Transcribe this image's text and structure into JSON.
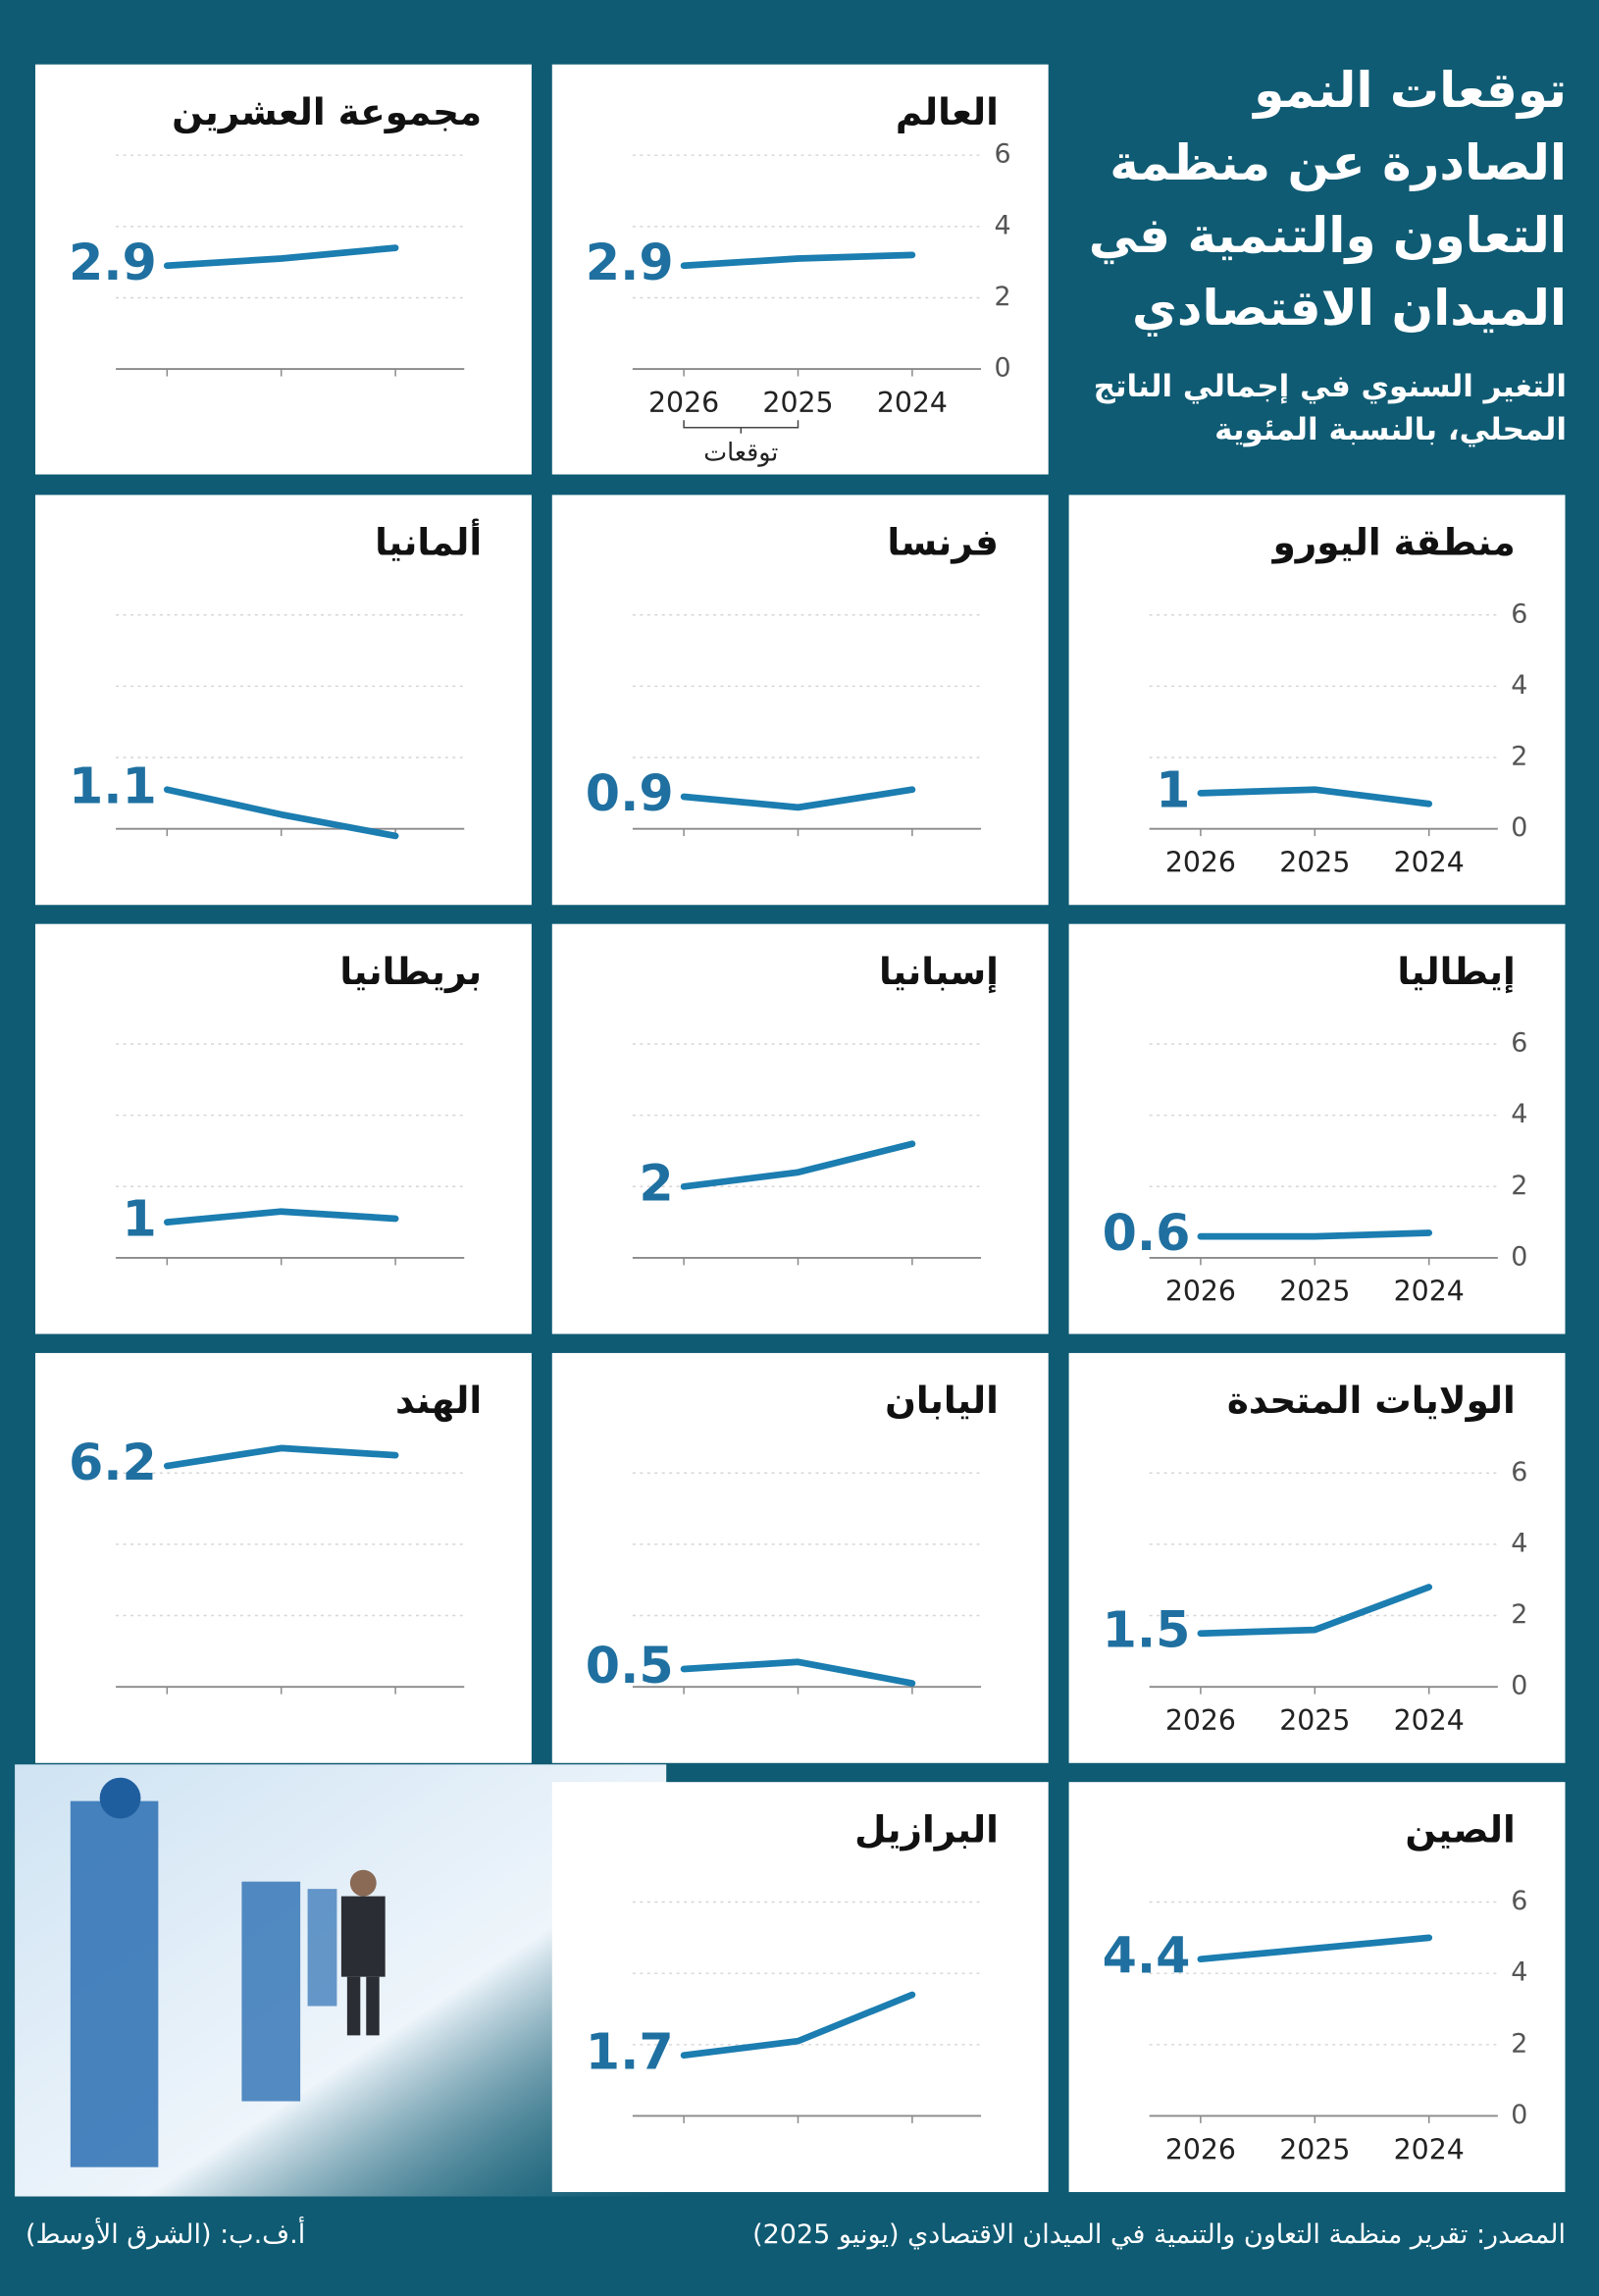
{
  "header": {
    "title": "توقعات النمو الصادرة عن منظمة التعاون والتنمية في الميدان الاقتصادي",
    "subtitle": "التغير السنوي في إجمالي الناتج المحلي، بالنسبة المئوية"
  },
  "chart_data": [
    {
      "type": "line",
      "title": "العالم",
      "categories": [
        "2024",
        "2025",
        "2026"
      ],
      "values": [
        3.2,
        3.1,
        2.9
      ],
      "color": "#1b7db0",
      "ylim": [
        0,
        6
      ],
      "yticks": [
        0,
        2,
        4,
        6
      ],
      "grid": true,
      "tick_labels": true,
      "annotation": "توقعات"
    },
    {
      "type": "line",
      "title": "مجموعة العشرين",
      "categories": [
        "2024",
        "2025",
        "2026"
      ],
      "values": [
        3.4,
        3.1,
        2.9
      ],
      "color": "#1b7db0",
      "ylim": [
        0,
        6
      ],
      "yticks": [
        0,
        2,
        4,
        6
      ],
      "grid": true,
      "tick_labels": false
    },
    {
      "type": "line",
      "title": "منطقة اليورو",
      "categories": [
        "2024",
        "2025",
        "2026"
      ],
      "values": [
        0.7,
        1.1,
        1
      ],
      "color": "#1b7db0",
      "ylim": [
        0,
        6
      ],
      "yticks": [
        0,
        2,
        4,
        6
      ],
      "grid": true,
      "tick_labels": true
    },
    {
      "type": "line",
      "title": "فرنسا",
      "categories": [
        "2024",
        "2025",
        "2026"
      ],
      "values": [
        1.1,
        0.6,
        0.9
      ],
      "color": "#1b7db0",
      "ylim": [
        0,
        6
      ],
      "yticks": [
        0,
        2,
        4,
        6
      ],
      "grid": true,
      "tick_labels": false
    },
    {
      "type": "line",
      "title": "ألمانيا",
      "categories": [
        "2024",
        "2025",
        "2026"
      ],
      "values": [
        -0.2,
        0.4,
        1.1
      ],
      "color": "#1b7db0",
      "ylim": [
        0,
        6
      ],
      "yticks": [
        0,
        2,
        4,
        6
      ],
      "grid": true,
      "tick_labels": false
    },
    {
      "type": "line",
      "title": "إيطاليا",
      "categories": [
        "2024",
        "2025",
        "2026"
      ],
      "values": [
        0.7,
        0.6,
        0.6
      ],
      "color": "#1b7db0",
      "ylim": [
        0,
        6
      ],
      "yticks": [
        0,
        2,
        4,
        6
      ],
      "grid": true,
      "tick_labels": true
    },
    {
      "type": "line",
      "title": "إسبانيا",
      "categories": [
        "2024",
        "2025",
        "2026"
      ],
      "values": [
        3.2,
        2.4,
        2
      ],
      "color": "#1b7db0",
      "ylim": [
        0,
        6
      ],
      "yticks": [
        0,
        2,
        4,
        6
      ],
      "grid": true,
      "tick_labels": false
    },
    {
      "type": "line",
      "title": "بريطانيا",
      "categories": [
        "2024",
        "2025",
        "2026"
      ],
      "values": [
        1.1,
        1.3,
        1
      ],
      "color": "#1b7db0",
      "ylim": [
        0,
        6
      ],
      "yticks": [
        0,
        2,
        4,
        6
      ],
      "grid": true,
      "tick_labels": false
    },
    {
      "type": "line",
      "title": "الولايات المتحدة",
      "categories": [
        "2024",
        "2025",
        "2026"
      ],
      "values": [
        2.8,
        1.6,
        1.5
      ],
      "color": "#1b7db0",
      "ylim": [
        0,
        6
      ],
      "yticks": [
        0,
        2,
        4,
        6
      ],
      "grid": true,
      "tick_labels": true
    },
    {
      "type": "line",
      "title": "اليابان",
      "categories": [
        "2024",
        "2025",
        "2026"
      ],
      "values": [
        0.1,
        0.7,
        0.5
      ],
      "color": "#1b7db0",
      "ylim": [
        0,
        6
      ],
      "yticks": [
        0,
        2,
        4,
        6
      ],
      "grid": true,
      "tick_labels": false
    },
    {
      "type": "line",
      "title": "الهند",
      "categories": [
        "2024",
        "2025",
        "2026"
      ],
      "values": [
        6.5,
        6.7,
        6.2
      ],
      "color": "#1b7db0",
      "ylim": [
        0,
        6
      ],
      "yticks": [
        0,
        2,
        4,
        6
      ],
      "grid": true,
      "tick_labels": false
    },
    {
      "type": "line",
      "title": "الصين",
      "categories": [
        "2024",
        "2025",
        "2026"
      ],
      "values": [
        5,
        4.7,
        4.4
      ],
      "color": "#1b7db0",
      "ylim": [
        0,
        6
      ],
      "yticks": [
        0,
        2,
        4,
        6
      ],
      "grid": true,
      "tick_labels": true
    },
    {
      "type": "line",
      "title": "البرازيل",
      "categories": [
        "2024",
        "2025",
        "2026"
      ],
      "values": [
        3.4,
        2.1,
        1.7
      ],
      "color": "#1b7db0",
      "ylim": [
        0,
        6
      ],
      "yticks": [
        0,
        2,
        4,
        6
      ],
      "grid": true,
      "tick_labels": false
    }
  ],
  "footer": {
    "source": "المصدر: تقرير منظمة التعاون والتنمية في الميدان الاقتصادي (يونيو 2025)",
    "credit": "أ.ف.ب: (الشرق الأوسط)"
  }
}
